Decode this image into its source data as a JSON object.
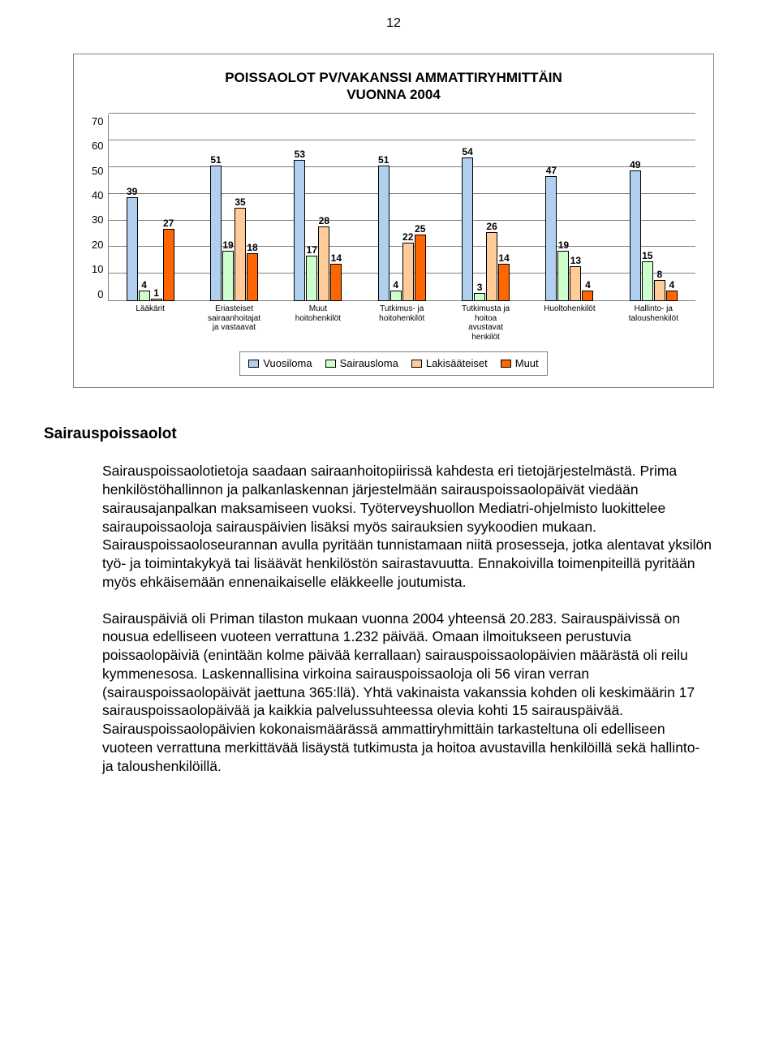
{
  "page_number": "12",
  "chart": {
    "type": "bar",
    "title": "POISSAOLOT PV/VAKANSSI AMMATTIRYHMITTÄIN\nVUONNA 2004",
    "y_max": 70,
    "y_tick_step": 10,
    "y_ticks": [
      "70",
      "60",
      "50",
      "40",
      "30",
      "20",
      "10",
      "0"
    ],
    "series_colors": {
      "vuosiloma": "#b1d0f0",
      "sairausloma": "#ccffcc",
      "lakisaateiset": "#ffcc99",
      "muut": "#ff6600"
    },
    "grid_color": "#808080",
    "categories": [
      {
        "label": "Lääkärit",
        "values": [
          39,
          4,
          1,
          27
        ]
      },
      {
        "label": "Eriasteiset\nsairaanhoitajat\nja vastaavat",
        "values": [
          51,
          19,
          35,
          18
        ]
      },
      {
        "label": "Muut\nhoitohenkilöt",
        "values": [
          53,
          17,
          28,
          14
        ]
      },
      {
        "label": "Tutkimus- ja\nhoitohenkilöt",
        "values": [
          51,
          4,
          22,
          25
        ]
      },
      {
        "label": "Tutkimusta ja\nhoitoa\navustavat\nhenkilöt",
        "values": [
          54,
          3,
          26,
          14
        ]
      },
      {
        "label": "Huoltohenkilöt",
        "values": [
          47,
          19,
          13,
          4
        ]
      },
      {
        "label": "Hallinto- ja\ntaloushenkilöt",
        "values": [
          49,
          15,
          8,
          4
        ]
      }
    ],
    "legend": [
      "Vuosiloma",
      "Sairausloma",
      "Lakisääteiset",
      "Muut"
    ]
  },
  "section_heading": "Sairauspoissaolot",
  "paragraphs": [
    "Sairauspoissaolotietoja saadaan sairaanhoitopiirissä kahdesta eri tietojärjestelmästä. Prima henkilöstöhallinnon ja palkanlaskennan järjestelmään sairauspoissaolopäivät viedään sairausajanpalkan maksamiseen vuoksi. Työterveyshuollon Mediatri-ohjelmisto luokittelee sairaupoissaoloja sairauspäivien lisäksi myös sairauksien syykoodien mukaan. Sairauspoissaoloseurannan avulla pyritään tunnistamaan niitä prosesseja, jotka alentavat yksilön työ- ja toimintakykyä tai lisäävät henkilöstön sairastavuutta. Ennakoivilla toimenpiteillä pyritään myös ehkäisemään ennenaikaiselle eläkkeelle joutumista.",
    "Sairauspäiviä oli Priman tilaston mukaan vuonna 2004 yhteensä 20.283. Sairauspäivissä on nousua edelliseen vuoteen verrattuna 1.232 päivää. Omaan ilmoitukseen perustuvia poissaolopäiviä (enintään kolme päivää kerrallaan) sairauspoissaolopäivien määrästä oli reilu kymmenesosa. Laskennallisina virkoina sairauspoissaoloja oli 56 viran verran (sairauspoissaolopäivät jaettuna 365:llä). Yhtä vakinaista vakanssia kohden oli keskimäärin 17 sairauspoissaolopäivää ja kaikkia palvelussuhteessa olevia kohti 15 sairauspäivää. Sairauspoissaolopäivien kokonaismäärässä ammattiryhmittäin tarkasteltuna oli edelliseen vuoteen verrattuna merkittävää lisäystä tutkimusta ja hoitoa avustavilla henkilöillä sekä hallinto- ja taloushenkilöillä."
  ]
}
